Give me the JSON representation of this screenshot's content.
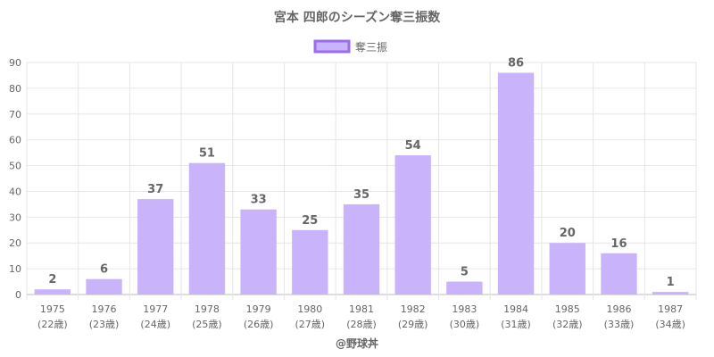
{
  "chart_data": {
    "type": "bar",
    "title": "宮本 四郎のシーズン奪三振数",
    "categories": [
      "1975",
      "1976",
      "1977",
      "1978",
      "1979",
      "1980",
      "1981",
      "1982",
      "1983",
      "1984",
      "1985",
      "1986",
      "1987"
    ],
    "category_sublabels": [
      "(22歳)",
      "(23歳)",
      "(24歳)",
      "(25歳)",
      "(26歳)",
      "(27歳)",
      "(28歳)",
      "(29歳)",
      "(30歳)",
      "(31歳)",
      "(32歳)",
      "(33歳)",
      "(34歳)"
    ],
    "series": [
      {
        "name": "奪三振",
        "values": [
          2,
          6,
          37,
          51,
          33,
          25,
          35,
          54,
          5,
          86,
          20,
          16,
          1
        ]
      }
    ],
    "ylim": [
      0,
      90
    ],
    "yticks": [
      0,
      10,
      20,
      30,
      40,
      50,
      60,
      70,
      80,
      90
    ],
    "grid": true,
    "legend_position": "top-center",
    "bar_color": "#c9b3fb",
    "bar_border_color": "#9b6cf0",
    "credit": "@野球丼"
  }
}
